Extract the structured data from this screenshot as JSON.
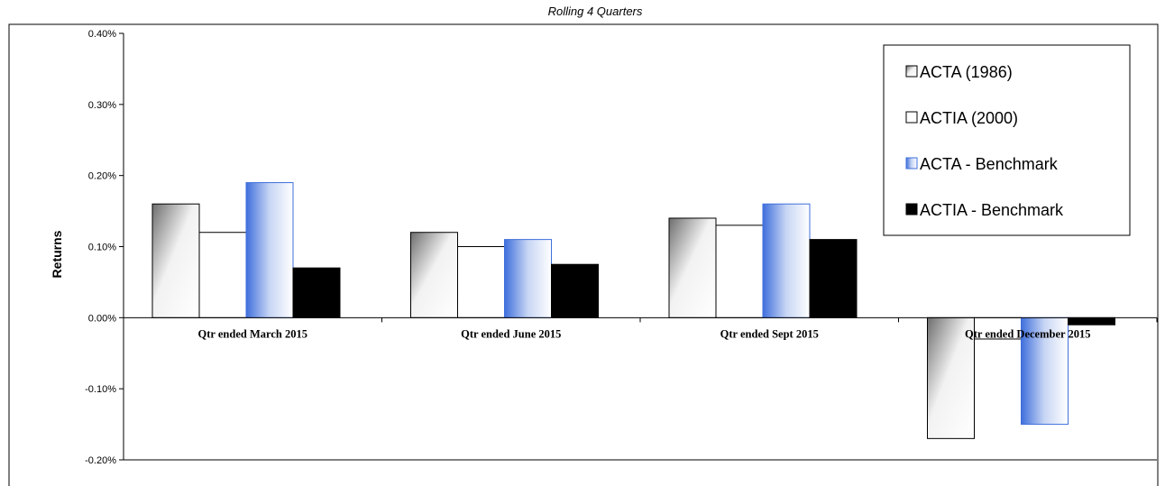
{
  "chart_data": {
    "type": "bar",
    "title": "Rolling 4 Quarters",
    "ylabel": "Returns",
    "xlabel": "",
    "ylim": [
      -0.2,
      0.4
    ],
    "yticks": [
      "0.40%",
      "0.30%",
      "0.20%",
      "0.10%",
      "0.00%",
      "-0.10%",
      "-0.20%"
    ],
    "categories": [
      "Qtr ended March 2015",
      "Qtr ended June 2015",
      "Qtr ended Sept 2015",
      "Qtr ended December 2015"
    ],
    "series": [
      {
        "name": "ACTA (1986)",
        "values": [
          0.16,
          0.12,
          0.14,
          -0.17
        ]
      },
      {
        "name": "ACTIA (2000)",
        "values": [
          0.12,
          0.1,
          0.13,
          -0.03
        ]
      },
      {
        "name": "ACTA - Benchmark",
        "values": [
          0.19,
          0.11,
          0.16,
          -0.15
        ]
      },
      {
        "name": "ACTIA - Benchmark",
        "values": [
          0.07,
          0.075,
          0.11,
          -0.01
        ]
      }
    ],
    "legend_position": "top-right",
    "grid": false
  }
}
